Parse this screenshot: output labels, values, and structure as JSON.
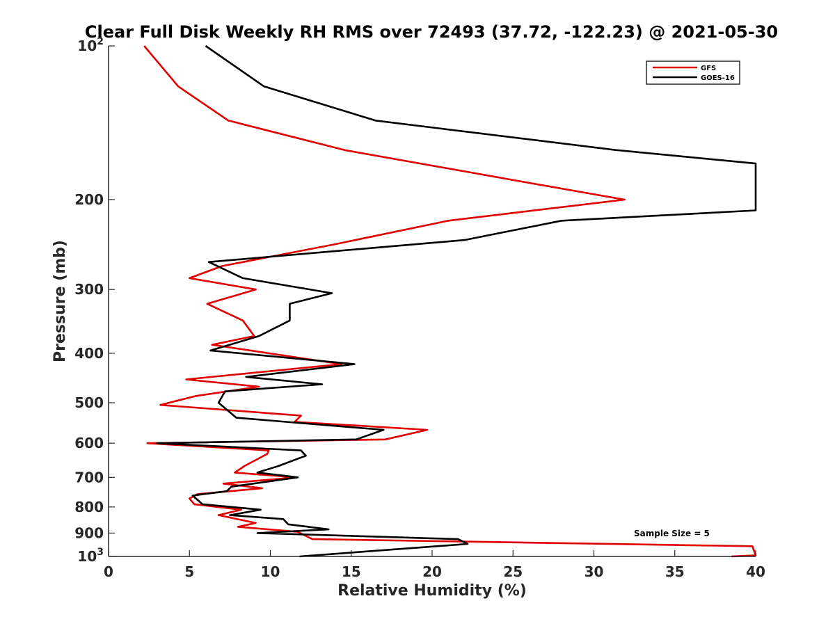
{
  "chart_data": {
    "type": "line",
    "title": "Clear Full Disk Weekly RH RMS over 72493 (37.72, -122.23) @ 2021-05-30",
    "xlabel": "Relative Humidity (%)",
    "ylabel": "Pressure (mb)",
    "xlim": [
      0,
      40
    ],
    "ylim": [
      100,
      1000
    ],
    "y_scale": "log",
    "y_reversed": true,
    "x_ticks": [
      "0",
      "5",
      "10",
      "15",
      "20",
      "25",
      "30",
      "35",
      "40"
    ],
    "y_ticks": [
      {
        "value": 100,
        "base": "10",
        "exp": "2"
      },
      {
        "value": 200,
        "label": "200"
      },
      {
        "value": 300,
        "label": "300"
      },
      {
        "value": 400,
        "label": "400"
      },
      {
        "value": 500,
        "label": "500"
      },
      {
        "value": 600,
        "label": "600"
      },
      {
        "value": 700,
        "label": "700"
      },
      {
        "value": 800,
        "label": "800"
      },
      {
        "value": 900,
        "label": "900"
      },
      {
        "value": 1000,
        "base": "10",
        "exp": "3"
      }
    ],
    "legend_position": "top-right",
    "grid": false,
    "annotation": "Sample Size = 5",
    "series": [
      {
        "name": "GFS",
        "color": "#e00000",
        "points": [
          [
            2.2,
            100
          ],
          [
            4.3,
            120
          ],
          [
            7.4,
            140
          ],
          [
            14.6,
            160
          ],
          [
            25.8,
            185
          ],
          [
            31.9,
            200
          ],
          [
            21.0,
            220
          ],
          [
            13.9,
            245
          ],
          [
            7.0,
            270
          ],
          [
            5.0,
            285
          ],
          [
            9.1,
            300
          ],
          [
            6.1,
            320
          ],
          [
            8.3,
            345
          ],
          [
            9.0,
            370
          ],
          [
            6.4,
            385
          ],
          [
            14.4,
            420
          ],
          [
            4.8,
            450
          ],
          [
            9.3,
            465
          ],
          [
            5.4,
            485
          ],
          [
            3.2,
            505
          ],
          [
            11.9,
            530
          ],
          [
            11.5,
            545
          ],
          [
            19.7,
            565
          ],
          [
            17.1,
            590
          ],
          [
            2.4,
            600
          ],
          [
            9.9,
            620
          ],
          [
            9.8,
            630
          ],
          [
            8.4,
            665
          ],
          [
            7.8,
            685
          ],
          [
            11.6,
            700
          ],
          [
            7.1,
            720
          ],
          [
            9.5,
            735
          ],
          [
            5.5,
            755
          ],
          [
            5.0,
            770
          ],
          [
            5.3,
            790
          ],
          [
            8.2,
            810
          ],
          [
            6.8,
            830
          ],
          [
            9.1,
            860
          ],
          [
            8.0,
            875
          ],
          [
            11.7,
            895
          ],
          [
            12.6,
            925
          ],
          [
            39.8,
            955
          ],
          [
            40.0,
            995
          ],
          [
            38.5,
            1000
          ]
        ]
      },
      {
        "name": "GOES-16",
        "color": "#000000",
        "points": [
          [
            6.0,
            100
          ],
          [
            9.6,
            120
          ],
          [
            16.5,
            140
          ],
          [
            31.4,
            160
          ],
          [
            40.0,
            170
          ],
          [
            40.0,
            210
          ],
          [
            28.0,
            220
          ],
          [
            22.0,
            240
          ],
          [
            6.2,
            265
          ],
          [
            8.3,
            285
          ],
          [
            13.8,
            305
          ],
          [
            11.2,
            320
          ],
          [
            11.2,
            345
          ],
          [
            9.3,
            370
          ],
          [
            6.3,
            395
          ],
          [
            15.2,
            420
          ],
          [
            8.5,
            445
          ],
          [
            13.2,
            460
          ],
          [
            7.2,
            475
          ],
          [
            6.8,
            500
          ],
          [
            7.9,
            535
          ],
          [
            17.0,
            565
          ],
          [
            15.3,
            590
          ],
          [
            3.0,
            600
          ],
          [
            11.9,
            620
          ],
          [
            12.2,
            635
          ],
          [
            10.5,
            665
          ],
          [
            9.2,
            685
          ],
          [
            11.7,
            700
          ],
          [
            7.6,
            730
          ],
          [
            7.3,
            745
          ],
          [
            5.2,
            760
          ],
          [
            5.8,
            790
          ],
          [
            9.4,
            810
          ],
          [
            7.5,
            830
          ],
          [
            10.8,
            845
          ],
          [
            11.1,
            865
          ],
          [
            13.6,
            885
          ],
          [
            9.2,
            900
          ],
          [
            21.6,
            925
          ],
          [
            22.2,
            945
          ],
          [
            11.8,
            1000
          ]
        ]
      }
    ]
  }
}
